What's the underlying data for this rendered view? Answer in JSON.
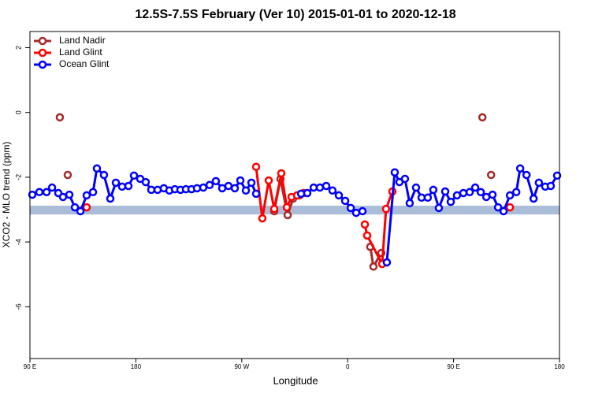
{
  "chart_data": {
    "type": "line",
    "title": "12.5S-7.5S February (Ver 10)   2015-01-01 to 2020-12-18",
    "xlabel": "Longitude",
    "ylabel": "XCO2 - MLO trend (ppm)",
    "xlim": [
      90,
      540
    ],
    "xticks": [
      {
        "value": 90,
        "label": "90 E"
      },
      180,
      {
        "value": 270,
        "label": "90 W"
      },
      {
        "value": 360,
        "label": "0"
      },
      {
        "value": 450,
        "label": "90 E"
      },
      {
        "value": 540,
        "label": "180"
      }
    ],
    "ylim": [
      -7.6,
      2.5
    ],
    "yticks": [
      2,
      0,
      -2,
      -4,
      -6
    ],
    "band": [
      -3.15,
      -2.88
    ],
    "band_color": "#a9bcd8",
    "legend": "top-left",
    "series": [
      {
        "name": "Land Nadir",
        "color": "#a52a2a",
        "x": [
          115.4,
          null,
          122.1,
          null,
          297.6,
          302.9,
          309.0,
          313.6,
          319.0,
          null,
          379.2,
          381.9,
          388.6,
          null,
          474.5,
          null,
          481.9
        ],
        "values": [
          -0.15,
          null,
          -1.93,
          null,
          -3.05,
          -2.05,
          -3.17,
          -2.66,
          -2.56,
          null,
          -4.15,
          -4.76,
          -4.34,
          null,
          -0.15,
          null,
          -1.93
        ]
      },
      {
        "name": "Land Glint",
        "color": "#ff0000",
        "x": [
          138.2,
          null,
          282.2,
          287.5,
          292.9,
          297.6,
          303.6,
          308.3,
          312.3,
          317.0,
          322.4,
          null,
          374.6,
          376.6,
          389.3,
          392.6,
          398.0,
          null,
          497.9
        ],
        "values": [
          -2.93,
          null,
          -1.68,
          -3.27,
          -2.1,
          -2.98,
          -1.88,
          -2.93,
          -2.61,
          -2.56,
          -2.49,
          null,
          -3.46,
          -3.8,
          -4.68,
          -2.98,
          -2.44,
          null,
          -2.93
        ]
      },
      {
        "name": "Ocean Glint",
        "color": "#0000ff",
        "x": [
          92.0,
          98.0,
          104.1,
          108.8,
          114.1,
          118.1,
          123.5,
          128.2,
          132.9,
          138.2,
          143.6,
          146.9,
          152.9,
          158.3,
          163.0,
          168.3,
          173.7,
          178.4,
          183.7,
          188.4,
          193.1,
          198.5,
          203.8,
          208.5,
          213.2,
          217.9,
          222.6,
          227.3,
          232.0,
          237.3,
          242.7,
          248.0,
          253.4,
          258.7,
          264.1,
          268.8,
          273.5,
          278.2,
          282.2,
          null,
          320.4,
          325.7,
          331.1,
          336.4,
          341.8,
          347.1,
          352.5,
          357.9,
          362.6,
          367.2,
          372.6,
          null,
          393.3,
          400.0,
          404.0,
          408.7,
          412.7,
          418.1,
          422.8,
          428.1,
          432.8,
          437.5,
          442.9,
          447.6,
          452.9,
          458.3,
          463.7,
          468.4,
          473.1,
          477.8,
          483.1,
          487.8,
          492.5,
          497.9,
          503.3,
          506.6,
          512.0,
          518.0,
          522.5,
          527.9,
          532.6,
          538.0
        ],
        "values": [
          -2.54,
          -2.46,
          -2.46,
          -2.32,
          -2.49,
          -2.61,
          -2.54,
          -2.93,
          -3.05,
          -2.56,
          -2.46,
          -1.73,
          -1.93,
          -2.66,
          -2.17,
          -2.29,
          -2.27,
          -1.95,
          -2.05,
          -2.15,
          -2.39,
          -2.39,
          -2.34,
          -2.41,
          -2.37,
          -2.39,
          -2.37,
          -2.37,
          -2.34,
          -2.32,
          -2.24,
          -2.12,
          -2.34,
          -2.27,
          -2.34,
          -2.1,
          -2.41,
          -2.17,
          -2.51,
          null,
          -2.51,
          -2.49,
          -2.32,
          -2.32,
          -2.27,
          -2.41,
          -2.56,
          -2.73,
          -2.95,
          -3.1,
          -3.05,
          null,
          -4.63,
          -1.85,
          -2.15,
          -2.05,
          -2.8,
          -2.32,
          -2.63,
          -2.63,
          -2.39,
          -2.95,
          -2.44,
          -2.76,
          -2.56,
          -2.49,
          -2.46,
          -2.32,
          -2.46,
          -2.61,
          -2.54,
          -2.93,
          -3.05,
          -2.56,
          -2.46,
          -1.73,
          -1.93,
          -2.66,
          -2.17,
          -2.29,
          -2.27,
          -1.95
        ]
      }
    ]
  }
}
